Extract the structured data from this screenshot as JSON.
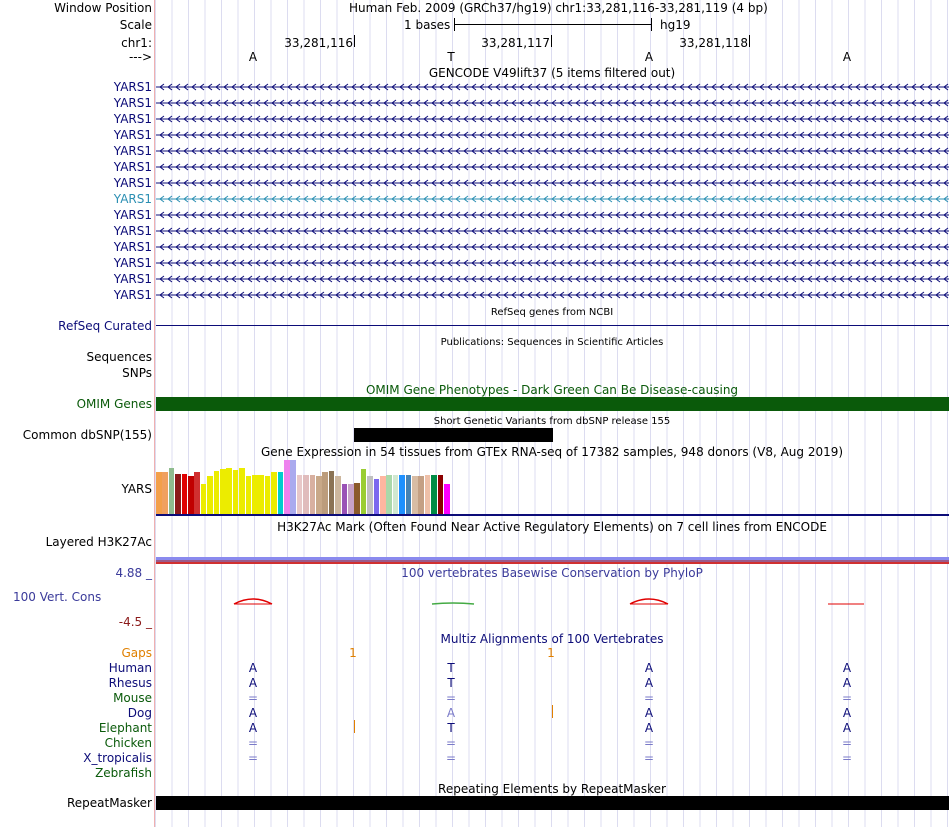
{
  "header": {
    "window_position_label": "Window Position",
    "position_text": "Human Feb. 2009 (GRCh37/hg19)   chr1:33,281,116-33,281,119 (4 bp)",
    "scale_label": "Scale",
    "scale_text": "1 bases",
    "assembly": "hg19",
    "chrom_label": "chr1:",
    "ticks": [
      "33,281,116",
      "33,281,117",
      "33,281,118"
    ],
    "strand_label": "--->",
    "bases": [
      "A",
      "T",
      "A",
      "A"
    ]
  },
  "gencode": {
    "title": "GENCODE V49lift37 (5 items filtered out)",
    "genes": [
      "YARS1",
      "YARS1",
      "YARS1",
      "YARS1",
      "YARS1",
      "YARS1",
      "YARS1",
      "YARS1",
      "YARS1",
      "YARS1",
      "YARS1",
      "YARS1",
      "YARS1",
      "YARS1"
    ],
    "highlight_index": 7,
    "highlight_color": "#2b8fb3"
  },
  "refseq": {
    "title": "RefSeq genes from NCBI",
    "label": "RefSeq Curated"
  },
  "publications": {
    "title": "Publications: Sequences in Scientific Articles",
    "label1": "Sequences",
    "label2": "SNPs"
  },
  "omim": {
    "title": "OMIM Gene Phenotypes - Dark Green Can Be Disease-causing",
    "label": "OMIM Genes",
    "color": "#0a5a0a"
  },
  "dbsnp": {
    "title": "Short Genetic Variants from dbSNP release 155",
    "label": "Common dbSNP(155)"
  },
  "gtex": {
    "title": "Gene Expression in 54 tissues from GTEx RNA-seq of 17382 samples, 948 donors (V8, Aug 2019)",
    "label": "YARS",
    "bars": [
      {
        "v": 0.77,
        "c": "#f39f4a"
      },
      {
        "v": 0.77,
        "c": "#f0a060"
      },
      {
        "v": 0.86,
        "c": "#8fbc8f"
      },
      {
        "v": 0.74,
        "c": "#8b1a1a"
      },
      {
        "v": 0.74,
        "c": "#e00000"
      },
      {
        "v": 0.71,
        "c": "#c00000"
      },
      {
        "v": 0.77,
        "c": "#d03030"
      },
      {
        "v": 0.56,
        "c": "#ecec00"
      },
      {
        "v": 0.71,
        "c": "#ecec00"
      },
      {
        "v": 0.79,
        "c": "#ecec00"
      },
      {
        "v": 0.83,
        "c": "#ecec00"
      },
      {
        "v": 0.86,
        "c": "#ecec00"
      },
      {
        "v": 0.82,
        "c": "#ecec00"
      },
      {
        "v": 0.86,
        "c": "#ecec00"
      },
      {
        "v": 0.71,
        "c": "#ecec00"
      },
      {
        "v": 0.73,
        "c": "#ecec00"
      },
      {
        "v": 0.73,
        "c": "#ecec00"
      },
      {
        "v": 0.71,
        "c": "#ecec00"
      },
      {
        "v": 0.77,
        "c": "#ecec00"
      },
      {
        "v": 0.77,
        "c": "#00cdcd"
      },
      {
        "v": 1.0,
        "c": "#ee82ee"
      },
      {
        "v": 1.0,
        "c": "#aaaaee"
      },
      {
        "v": 0.73,
        "c": "#e8c8c8"
      },
      {
        "v": 0.73,
        "c": "#e0bcbc"
      },
      {
        "v": 0.73,
        "c": "#d8b0a0"
      },
      {
        "v": 0.71,
        "c": "#c8a888"
      },
      {
        "v": 0.77,
        "c": "#bc9c7c"
      },
      {
        "v": 0.79,
        "c": "#8b7355"
      },
      {
        "v": 0.71,
        "c": "#cdb79e"
      },
      {
        "v": 0.55,
        "c": "#9a52b6"
      },
      {
        "v": 0.55,
        "c": "#c8a2c8"
      },
      {
        "v": 0.57,
        "c": "#8b5a2b"
      },
      {
        "v": 0.84,
        "c": "#9acd32"
      },
      {
        "v": 0.71,
        "c": "#c0c0c0"
      },
      {
        "v": 0.64,
        "c": "#7b68ee"
      },
      {
        "v": 0.71,
        "c": "#ffb6a0"
      },
      {
        "v": 0.73,
        "c": "#aad8aa"
      },
      {
        "v": 0.73,
        "c": "#d0e8d0"
      },
      {
        "v": 0.73,
        "c": "#1e90ff"
      },
      {
        "v": 0.73,
        "c": "#4682b4"
      },
      {
        "v": 0.71,
        "c": "#d8bca4"
      },
      {
        "v": 0.71,
        "c": "#c4a084"
      },
      {
        "v": 0.73,
        "c": "#eec0a8"
      },
      {
        "v": 0.73,
        "c": "#008b45"
      },
      {
        "v": 0.73,
        "c": "#8b0000"
      },
      {
        "v": 0.55,
        "c": "#ff00ff"
      }
    ]
  },
  "h3k27ac": {
    "title": "H3K27Ac Mark (Often Found Near Active Regulatory Elements) on 7 cell lines from ENCODE",
    "label": "Layered H3K27Ac"
  },
  "conservation": {
    "title": "100 vertebrates Basewise Conservation by PhyloP",
    "label": "100 Vert. Cons",
    "max": "4.88 _",
    "min": "-4.5 _",
    "title_color": "#3a3a9a",
    "min_color": "#8b1a1a"
  },
  "multiz": {
    "title": "Multiz Alignments of 100 Vertebrates",
    "gaps_label": "Gaps",
    "gap_values": [
      "1",
      "1"
    ],
    "species": [
      {
        "name": "Human",
        "color": "#0c0c78",
        "seq": [
          "A",
          "T",
          "A",
          "A"
        ]
      },
      {
        "name": "Rhesus",
        "color": "#0c0c78",
        "seq": [
          "A",
          "T",
          "A",
          "A"
        ]
      },
      {
        "name": "Mouse",
        "color": "#0a5a0a",
        "seq": [
          "=",
          "=",
          "=",
          "="
        ]
      },
      {
        "name": "Dog",
        "color": "#0c0c78",
        "seq": [
          "A",
          "A",
          "A",
          "A"
        ]
      },
      {
        "name": "Elephant",
        "color": "#0a5a0a",
        "seq": [
          "A",
          "T",
          "A",
          "A"
        ]
      },
      {
        "name": "Chicken",
        "color": "#0a5a0a",
        "seq": [
          "=",
          "=",
          "=",
          "="
        ]
      },
      {
        "name": "X_tropicalis",
        "color": "#0c0c78",
        "seq": [
          "=",
          "=",
          "=",
          "="
        ]
      },
      {
        "name": "Zebrafish",
        "color": "#0a5a0a",
        "seq": []
      }
    ]
  },
  "repeatmasker": {
    "title": "Repeating Elements by RepeatMasker",
    "label": "RepeatMasker"
  }
}
